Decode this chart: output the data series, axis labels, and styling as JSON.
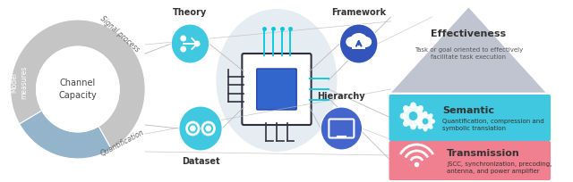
{
  "bg_color": "#ffffff",
  "gray_color": "#c8c8c8",
  "blue_color": "#93b4cb",
  "channel_capacity_text": "Channel\nCapacity",
  "signal_process_text": "Signal process",
  "quantification_text": "Quantification",
  "model_measures_text": "Model\nmeasures",
  "theory_text": "Theory",
  "dataset_text": "Dataset",
  "hierarchy_text": "Hierarchy",
  "framework_text": "Framework",
  "effectiveness_title": "Effectiveness",
  "effectiveness_sub": "Task or goal oriented to effectively\nfacilitate task execution",
  "semantic_title": "Semantic",
  "semantic_sub": "Quantification, compression and\nsymbolic translation",
  "transmission_title": "Transmission",
  "transmission_sub": "JSCC, synchronization, precoding,\nantenna, and power amplifier",
  "cyan_circle_color": "#40c8e0",
  "dataset_circle_color": "#40c8e0",
  "framework_circle_color": "#3355bb",
  "hierarchy_circle_color": "#4466cc",
  "semantic_bg": "#40c8e0",
  "transmission_bg": "#f08090",
  "effectiveness_bg": "#c0c4d0",
  "line_color": "#bbbbbb"
}
